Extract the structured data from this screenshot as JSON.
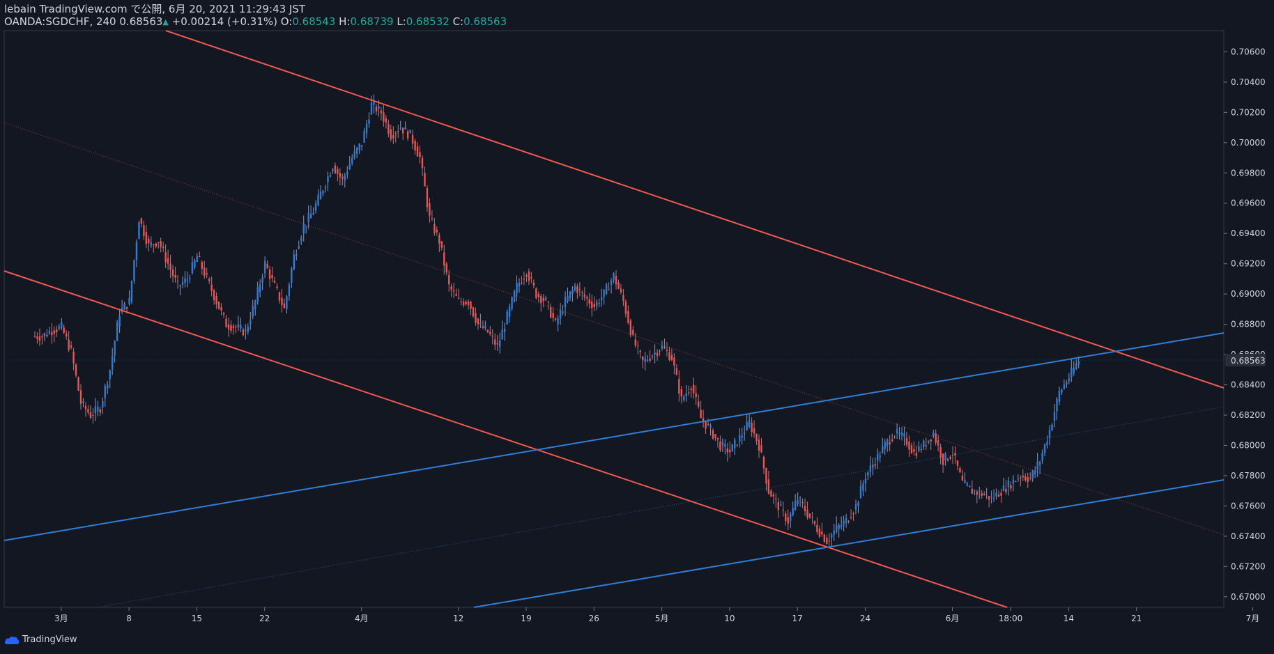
{
  "header": {
    "publisher_line": "lebain TradingView.com で公開, 6月 20, 2021 11:29:43 JST",
    "symbol": "OANDA:SGDCHF, 240",
    "last": "0.68563",
    "change": "+0.00214 (+0.31%)",
    "o_label": "O:",
    "o_value": "0.68543",
    "h_label": "H:",
    "h_value": "0.68739",
    "l_label": "L:",
    "l_value": "0.68532",
    "c_label": "C:",
    "c_value": "0.68563"
  },
  "brand": "TradingView",
  "colors": {
    "bg": "#131722",
    "up": "#2962ff",
    "upbody": "#2e7bd6",
    "down": "#ef5350",
    "blue_line": "#2f7fd6",
    "red_line": "#f05a4f",
    "grid": "#363a45",
    "text": "#d1d4dc"
  },
  "chart_data": {
    "type": "candlestick",
    "title": "OANDA:SGDCHF, 240",
    "ylim": [
      0.6693,
      0.7074
    ],
    "y_ticks": [
      "0.70600",
      "0.70400",
      "0.70200",
      "0.70000",
      "0.69800",
      "0.69600",
      "0.69400",
      "0.69200",
      "0.69000",
      "0.68800",
      "0.68600",
      "0.68400",
      "0.68200",
      "0.68000",
      "0.67800",
      "0.67600",
      "0.67400",
      "0.67200",
      "0.67000"
    ],
    "current_price_label": "0.68563",
    "x_ticks": [
      {
        "label": "3月",
        "idx": 2
      },
      {
        "label": "8",
        "idx": 9
      },
      {
        "label": "15",
        "idx": 16
      },
      {
        "label": "22",
        "idx": 23
      },
      {
        "label": "4月",
        "idx": 33
      },
      {
        "label": "12",
        "idx": 43
      },
      {
        "label": "19",
        "idx": 50
      },
      {
        "label": "26",
        "idx": 57
      },
      {
        "label": "5月",
        "idx": 64
      },
      {
        "label": "10",
        "idx": 71
      },
      {
        "label": "17",
        "idx": 78
      },
      {
        "label": "24",
        "idx": 85
      },
      {
        "label": "6月",
        "idx": 94
      },
      {
        "label": "18:00",
        "idx": 100
      },
      {
        "label": "14",
        "idx": 106
      },
      {
        "label": "21",
        "idx": 113
      },
      {
        "label": "7月",
        "idx": 125
      }
    ],
    "closes": [
      0.6872,
      0.6876,
      0.6878,
      0.6862,
      0.6828,
      0.682,
      0.6825,
      0.685,
      0.6888,
      0.6895,
      0.695,
      0.6932,
      0.6935,
      0.692,
      0.6905,
      0.691,
      0.6925,
      0.691,
      0.6895,
      0.688,
      0.6878,
      0.6875,
      0.6895,
      0.692,
      0.6905,
      0.689,
      0.6925,
      0.6945,
      0.6955,
      0.697,
      0.6985,
      0.6975,
      0.699,
      0.7,
      0.7025,
      0.702,
      0.7005,
      0.701,
      0.7005,
      0.699,
      0.695,
      0.6935,
      0.6905,
      0.6895,
      0.6895,
      0.688,
      0.6875,
      0.6865,
      0.6885,
      0.6905,
      0.6915,
      0.69,
      0.6895,
      0.688,
      0.6895,
      0.6905,
      0.6898,
      0.6892,
      0.69,
      0.6912,
      0.6895,
      0.687,
      0.6855,
      0.686,
      0.6865,
      0.6858,
      0.683,
      0.684,
      0.6818,
      0.681,
      0.68,
      0.6796,
      0.6805,
      0.6815,
      0.68,
      0.677,
      0.676,
      0.675,
      0.6765,
      0.6755,
      0.6745,
      0.6737,
      0.6745,
      0.675,
      0.676,
      0.678,
      0.679,
      0.68,
      0.6808,
      0.6805,
      0.6795,
      0.68,
      0.6808,
      0.679,
      0.6795,
      0.6775,
      0.677,
      0.6768,
      0.6765,
      0.677,
      0.6775,
      0.678,
      0.6778,
      0.679,
      0.681,
      0.6835,
      0.6845,
      0.6856
    ]
  }
}
